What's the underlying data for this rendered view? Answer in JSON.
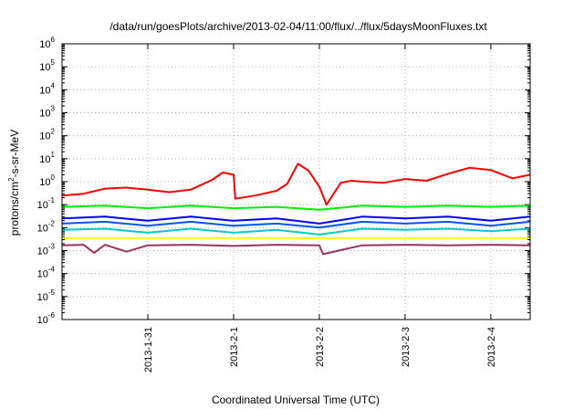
{
  "chart_data": {
    "type": "line",
    "title": "/data/run/goesPlots/archive/2013-02-04/11:00/flux/../flux/5daysMoonFluxes.txt",
    "xlabel": "Coordinated Universal Time (UTC)",
    "ylabel": {
      "prefix": "protons/cm",
      "exponent": "2",
      "suffix": "-s-sr-MeV"
    },
    "y_scale": "log",
    "ylim": [
      1e-06,
      1000000.0
    ],
    "y_ticks": [
      {
        "value": 1e-06,
        "base": "10",
        "exponent": "-6"
      },
      {
        "value": 1e-05,
        "base": "10",
        "exponent": "-5"
      },
      {
        "value": 0.0001,
        "base": "10",
        "exponent": "-4"
      },
      {
        "value": 0.001,
        "base": "10",
        "exponent": "-3"
      },
      {
        "value": 0.01,
        "base": "10",
        "exponent": "-2"
      },
      {
        "value": 0.1,
        "base": "10",
        "exponent": "-1"
      },
      {
        "value": 1,
        "base": "10",
        "exponent": "0"
      },
      {
        "value": 10,
        "base": "10",
        "exponent": "1"
      },
      {
        "value": 100,
        "base": "10",
        "exponent": "2"
      },
      {
        "value": 1000,
        "base": "10",
        "exponent": "3"
      },
      {
        "value": 10000,
        "base": "10",
        "exponent": "4"
      },
      {
        "value": 100000,
        "base": "10",
        "exponent": "5"
      },
      {
        "value": 1000000,
        "base": "10",
        "exponent": "6"
      }
    ],
    "xlim": [
      "2013-01-30 00:00",
      "2013-02-04 11:00"
    ],
    "x_ticks": [
      "2013-1-31",
      "2013-2-1",
      "2013-2-2",
      "2013-2-3",
      "2013-2-4"
    ],
    "grid": true,
    "series": [
      {
        "color": "#ff0000",
        "x": [
          "2013-01-30 00:00",
          "2013-01-30 06:00",
          "2013-01-30 12:00",
          "2013-01-30 18:00",
          "2013-01-31 00:00",
          "2013-01-31 06:00",
          "2013-01-31 12:00",
          "2013-01-31 18:00",
          "2013-01-31 21:00",
          "2013-02-01 00:00",
          "2013-02-01 00:30",
          "2013-02-01 06:00",
          "2013-02-01 12:00",
          "2013-02-01 15:00",
          "2013-02-01 18:00",
          "2013-02-01 21:00",
          "2013-02-02 00:00",
          "2013-02-02 02:00",
          "2013-02-02 06:00",
          "2013-02-02 09:00",
          "2013-02-02 12:00",
          "2013-02-02 18:00",
          "2013-02-03 00:00",
          "2013-02-03 06:00",
          "2013-02-03 12:00",
          "2013-02-03 18:00",
          "2013-02-04 00:00",
          "2013-02-04 06:00",
          "2013-02-04 11:00"
        ],
        "y": [
          0.25,
          0.3,
          0.5,
          0.55,
          0.45,
          0.35,
          0.45,
          1.2,
          2.5,
          2.0,
          0.18,
          0.25,
          0.4,
          0.8,
          6.0,
          3.0,
          0.6,
          0.1,
          0.9,
          1.1,
          1.0,
          0.9,
          1.3,
          1.1,
          2.2,
          4.0,
          3.2,
          1.4,
          2.0
        ]
      },
      {
        "color": "#00ee00",
        "x": [
          "2013-01-30 00:00",
          "2013-01-30 12:00",
          "2013-01-31 00:00",
          "2013-01-31 12:00",
          "2013-02-01 00:00",
          "2013-02-01 12:00",
          "2013-02-02 00:00",
          "2013-02-02 12:00",
          "2013-02-03 00:00",
          "2013-02-03 12:00",
          "2013-02-04 00:00",
          "2013-02-04 11:00"
        ],
        "y": [
          0.08,
          0.09,
          0.07,
          0.09,
          0.07,
          0.08,
          0.06,
          0.09,
          0.08,
          0.09,
          0.08,
          0.09
        ]
      },
      {
        "color": "#0000ff",
        "x": [
          "2013-01-30 00:00",
          "2013-01-30 12:00",
          "2013-01-31 00:00",
          "2013-01-31 12:00",
          "2013-02-01 00:00",
          "2013-02-01 12:00",
          "2013-02-02 00:00",
          "2013-02-02 12:00",
          "2013-02-03 00:00",
          "2013-02-03 12:00",
          "2013-02-04 00:00",
          "2013-02-04 11:00"
        ],
        "y": [
          0.025,
          0.03,
          0.02,
          0.03,
          0.02,
          0.025,
          0.015,
          0.03,
          0.025,
          0.03,
          0.02,
          0.03
        ]
      },
      {
        "color": "#0055ff",
        "x": [
          "2013-01-30 00:00",
          "2013-01-30 12:00",
          "2013-01-31 00:00",
          "2013-01-31 12:00",
          "2013-02-01 00:00",
          "2013-02-01 12:00",
          "2013-02-02 00:00",
          "2013-02-02 12:00",
          "2013-02-03 00:00",
          "2013-02-03 12:00",
          "2013-02-04 00:00",
          "2013-02-04 11:00"
        ],
        "y": [
          0.015,
          0.018,
          0.012,
          0.018,
          0.012,
          0.015,
          0.01,
          0.018,
          0.015,
          0.018,
          0.012,
          0.018
        ]
      },
      {
        "color": "#00cccc",
        "x": [
          "2013-01-30 00:00",
          "2013-01-30 12:00",
          "2013-01-31 00:00",
          "2013-01-31 12:00",
          "2013-02-01 00:00",
          "2013-02-01 12:00",
          "2013-02-02 00:00",
          "2013-02-02 12:00",
          "2013-02-03 00:00",
          "2013-02-03 12:00",
          "2013-02-04 00:00",
          "2013-02-04 11:00"
        ],
        "y": [
          0.008,
          0.009,
          0.006,
          0.009,
          0.006,
          0.008,
          0.005,
          0.009,
          0.008,
          0.009,
          0.007,
          0.009
        ]
      },
      {
        "color": "#ffff00",
        "x": [
          "2013-01-30 00:00",
          "2013-01-30 12:00",
          "2013-01-31 00:00",
          "2013-01-31 12:00",
          "2013-02-01 00:00",
          "2013-02-01 12:00",
          "2013-02-02 00:00",
          "2013-02-02 12:00",
          "2013-02-03 00:00",
          "2013-02-03 12:00",
          "2013-02-04 00:00",
          "2013-02-04 11:00"
        ],
        "y": [
          0.0035,
          0.0035,
          0.0035,
          0.0035,
          0.0035,
          0.0035,
          0.0035,
          0.0035,
          0.0035,
          0.0035,
          0.0035,
          0.0035
        ]
      },
      {
        "color": "#993366",
        "x": [
          "2013-01-30 00:00",
          "2013-01-30 06:00",
          "2013-01-30 09:00",
          "2013-01-30 12:00",
          "2013-01-30 18:00",
          "2013-01-31 00:00",
          "2013-01-31 12:00",
          "2013-02-01 00:00",
          "2013-02-01 12:00",
          "2013-02-02 00:00",
          "2013-02-02 01:00",
          "2013-02-02 12:00",
          "2013-02-03 00:00",
          "2013-02-03 12:00",
          "2013-02-04 00:00",
          "2013-02-04 11:00"
        ],
        "y": [
          0.0017,
          0.0018,
          0.0008,
          0.0018,
          0.0009,
          0.0017,
          0.0018,
          0.0016,
          0.0018,
          0.0017,
          0.0007,
          0.0017,
          0.0018,
          0.0017,
          0.0018,
          0.0017
        ]
      }
    ]
  }
}
